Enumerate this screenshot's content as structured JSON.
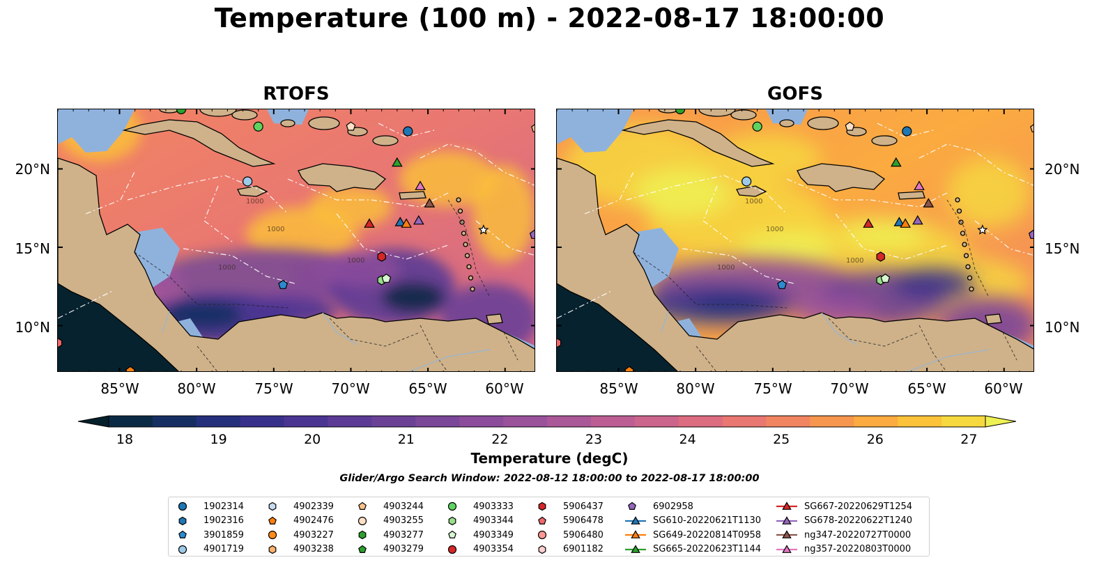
{
  "title": "Temperature (100 m) - 2022-08-17 18:00:00",
  "panels": [
    {
      "title": "RTOFS",
      "variant": "rtofs"
    },
    {
      "title": "GOFS",
      "variant": "gofs"
    }
  ],
  "lon_ticks": [
    "85°W",
    "80°W",
    "75°W",
    "70°W",
    "65°W",
    "60°W"
  ],
  "lat_ticks": [
    "20°N",
    "15°N",
    "10°N"
  ],
  "colorbar": {
    "label": "Temperature (degC)",
    "ticks": [
      "18",
      "19",
      "20",
      "21",
      "22",
      "23",
      "24",
      "25",
      "26",
      "27"
    ],
    "range": [
      18,
      27
    ],
    "extend": "both",
    "colormap": "thermal",
    "colors": [
      "#04202b",
      "#0b2a46",
      "#162f63",
      "#25307d",
      "#38318c",
      "#4b3593",
      "#5b3b95",
      "#6b4196",
      "#7a4799",
      "#8a4c9b",
      "#9a529b",
      "#ab5899",
      "#bc5e93",
      "#cc658b",
      "#dc6c80",
      "#e97772",
      "#f28561",
      "#f7964f",
      "#fbab40",
      "#fbc23a",
      "#f6d93e",
      "#eef153"
    ]
  },
  "search_window": "Glider/Argo Search Window: 2022-08-12 18:00:00 to 2022-08-17 18:00:00",
  "contour_labels": [
    "1000",
    "1000",
    "1000",
    "1000"
  ],
  "legend": [
    {
      "label": "1902314",
      "marker": "circle",
      "color": "#1f77b4"
    },
    {
      "label": "1902316",
      "marker": "hexagon",
      "color": "#1f77b4"
    },
    {
      "label": "3901859",
      "marker": "pentagon",
      "color": "#2c8ad1"
    },
    {
      "label": "4901719",
      "marker": "circle",
      "color": "#9ecae9"
    },
    {
      "label": "4902339",
      "marker": "hexagon",
      "color": "#c6dbef"
    },
    {
      "label": "4902476",
      "marker": "pentagon",
      "color": "#ff7f0e"
    },
    {
      "label": "4903227",
      "marker": "circle",
      "color": "#ff8c1a"
    },
    {
      "label": "4903238",
      "marker": "hexagon",
      "color": "#ffb26e"
    },
    {
      "label": "4903244",
      "marker": "pentagon",
      "color": "#fdc086"
    },
    {
      "label": "4903255",
      "marker": "circle",
      "color": "#fde0c5"
    },
    {
      "label": "4903277",
      "marker": "hexagon",
      "color": "#2ca02c"
    },
    {
      "label": "4903279",
      "marker": "pentagon",
      "color": "#2ca02c"
    },
    {
      "label": "4903333",
      "marker": "circle",
      "color": "#5fd35f"
    },
    {
      "label": "4903344",
      "marker": "hexagon",
      "color": "#98df8a"
    },
    {
      "label": "4903349",
      "marker": "pentagon",
      "color": "#d6f5d0"
    },
    {
      "label": "4903354",
      "marker": "circle",
      "color": "#d62728"
    },
    {
      "label": "5906437",
      "marker": "hexagon",
      "color": "#d62728"
    },
    {
      "label": "5906478",
      "marker": "pentagon",
      "color": "#f0686a"
    },
    {
      "label": "5906480",
      "marker": "circle",
      "color": "#ff9896"
    },
    {
      "label": "6901182",
      "marker": "hexagon",
      "color": "#ffd0cf"
    },
    {
      "label": "6902958",
      "marker": "pentagon",
      "color": "#9467bd"
    },
    {
      "label": "SG610-20220621T1130",
      "marker": "triangle",
      "color": "#1f77b4"
    },
    {
      "label": "SG649-20220814T0958",
      "marker": "triangle",
      "color": "#ff7f0e"
    },
    {
      "label": "SG665-20220623T1144",
      "marker": "triangle",
      "color": "#2ca02c"
    },
    {
      "label": "SG667-20220629T1254",
      "marker": "triangle",
      "color": "#d62728"
    },
    {
      "label": "SG678-20220622T1240",
      "marker": "triangle",
      "color": "#9467bd"
    },
    {
      "label": "ng347-20220727T0000",
      "marker": "triangle",
      "color": "#8c564b"
    },
    {
      "label": "ng357-20220803T0000",
      "marker": "triangle",
      "color": "#e377c2"
    }
  ],
  "map_markers": [
    {
      "lon": -81.0,
      "lat": 23.8,
      "marker": "circle",
      "color": "#2ca02c"
    },
    {
      "lon": -76.0,
      "lat": 22.7,
      "marker": "circle",
      "color": "#5fd35f"
    },
    {
      "lon": -70.0,
      "lat": 22.7,
      "marker": "pentagon",
      "color": "#fde0c5"
    },
    {
      "lon": -66.3,
      "lat": 22.4,
      "marker": "circle",
      "color": "#1f77b4"
    },
    {
      "lon": -58.0,
      "lat": 22.6,
      "marker": "pentagon",
      "color": "#fdc086"
    },
    {
      "lon": -76.7,
      "lat": 19.2,
      "marker": "circle",
      "color": "#9ecae9"
    },
    {
      "lon": -67.0,
      "lat": 20.4,
      "marker": "triangle",
      "color": "#2ca02c"
    },
    {
      "lon": -65.5,
      "lat": 18.9,
      "marker": "triangle",
      "color": "#e377c2"
    },
    {
      "lon": -64.9,
      "lat": 17.8,
      "marker": "triangle",
      "color": "#8c564b"
    },
    {
      "lon": -68.8,
      "lat": 16.5,
      "marker": "triangle",
      "color": "#d62728"
    },
    {
      "lon": -66.8,
      "lat": 16.6,
      "marker": "triangle",
      "color": "#1f77b4"
    },
    {
      "lon": -66.4,
      "lat": 16.5,
      "marker": "triangle",
      "color": "#ff7f0e"
    },
    {
      "lon": -65.6,
      "lat": 16.7,
      "marker": "triangle",
      "color": "#9467bd"
    },
    {
      "lon": -68.0,
      "lat": 14.4,
      "marker": "hexagon",
      "color": "#d62728"
    },
    {
      "lon": -68.0,
      "lat": 12.9,
      "marker": "hexagon",
      "color": "#98df8a"
    },
    {
      "lon": -67.7,
      "lat": 13.0,
      "marker": "pentagon",
      "color": "#d6f5d0"
    },
    {
      "lon": -74.4,
      "lat": 12.6,
      "marker": "pentagon",
      "color": "#2c8ad1"
    },
    {
      "lon": -58.1,
      "lat": 15.8,
      "marker": "pentagon",
      "color": "#9467bd"
    },
    {
      "lon": -61.4,
      "lat": 16.1,
      "marker": "star",
      "color": "#ffffff"
    },
    {
      "lon": -89.0,
      "lat": 8.9,
      "marker": "hexagon",
      "color": "#f0686a"
    },
    {
      "lon": -84.3,
      "lat": 7.1,
      "marker": "pentagon",
      "color": "#ff7f0e"
    }
  ]
}
